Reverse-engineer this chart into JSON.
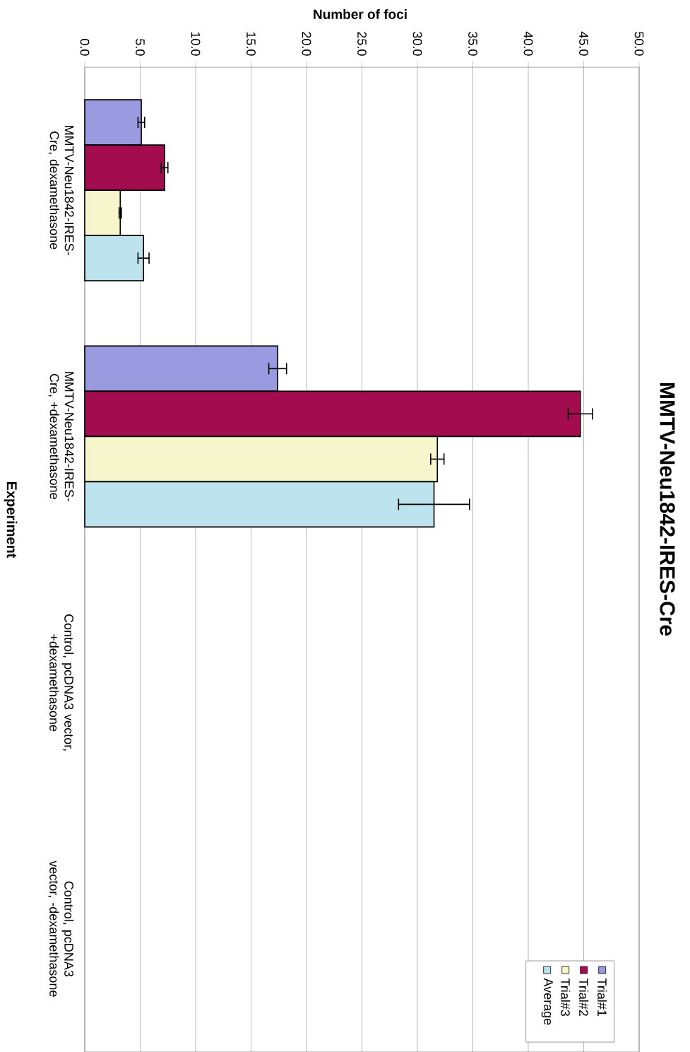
{
  "chart_data": {
    "type": "bar",
    "orientation": "horizontal",
    "title": "MMTV-Neu1842-IRES-Cre",
    "xlabel": "Number of foci",
    "ylabel": "Experiment",
    "categories": [
      "MMTV-Neu1842-IRES-Cre, dexamethasone",
      "MMTV-Neu1842-IRES-Cre, +dexamethasone",
      "Control, pcDNA3 vector, +dexamethasone",
      "Control, pcDNA3 vector, -dexamethasone"
    ],
    "series": [
      {
        "name": "Trial#1",
        "color": "#9a9ae0",
        "values": [
          5.1,
          17.4,
          null,
          null
        ],
        "errors": [
          0.3,
          0.8,
          null,
          null
        ]
      },
      {
        "name": "Trial#2",
        "color": "#a30d50",
        "values": [
          7.2,
          44.7,
          null,
          null
        ],
        "errors": [
          0.3,
          1.1,
          null,
          null
        ]
      },
      {
        "name": "Trial#3",
        "color": "#f7f5cc",
        "values": [
          3.2,
          31.8,
          null,
          null
        ],
        "errors": [
          0.1,
          0.6,
          null,
          null
        ]
      },
      {
        "name": "Average",
        "color": "#bde3ef",
        "values": [
          5.3,
          31.5,
          null,
          null
        ],
        "errors": [
          0.5,
          3.2,
          null,
          null
        ]
      }
    ],
    "xlim": [
      0,
      50
    ],
    "xticks": [
      {
        "value": 0,
        "label": "0.0"
      },
      {
        "value": 5,
        "label": "5.0"
      },
      {
        "value": 10,
        "label": "10.0"
      },
      {
        "value": 15,
        "label": "15.0"
      },
      {
        "value": 20,
        "label": "20.0"
      },
      {
        "value": 25,
        "label": "25.0"
      },
      {
        "value": 30,
        "label": "30.0"
      },
      {
        "value": 35,
        "label": "35.0"
      },
      {
        "value": 40,
        "label": "40.0"
      },
      {
        "value": 45,
        "label": "45.0"
      },
      {
        "value": 50,
        "label": "50.0"
      }
    ],
    "grid": "x",
    "legend": "bottom right"
  }
}
